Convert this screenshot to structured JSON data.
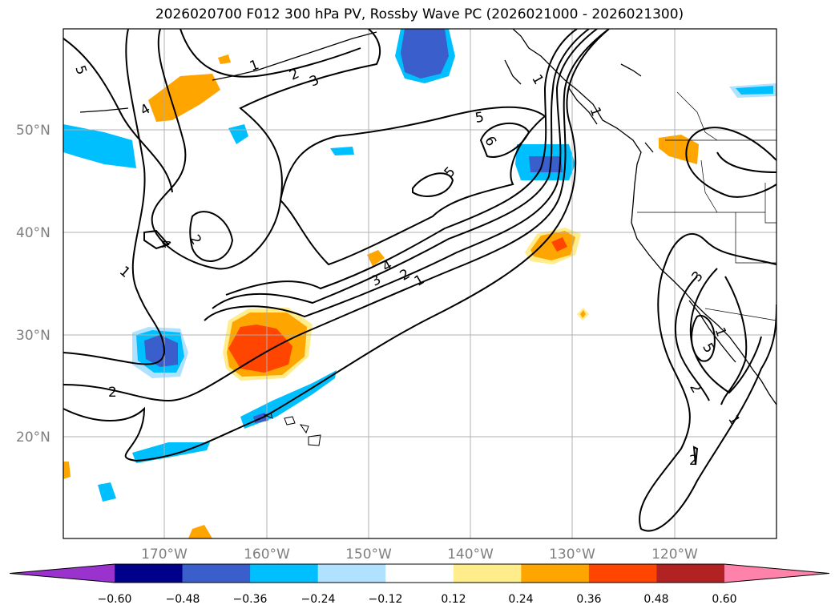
{
  "title": "2026020700 F012 300 hPa PV, Rossby Wave PC (2026021000 - 2026021300)",
  "lat_labels": [
    "50°N",
    "40°N",
    "30°N",
    "20°N"
  ],
  "lon_labels": [
    "170°W",
    "160°W",
    "150°W",
    "140°W",
    "130°W",
    "120°W"
  ],
  "colorbar": {
    "tick_labels": [
      "−0.60",
      "−0.48",
      "−0.36",
      "−0.24",
      "−0.12",
      "0.12",
      "0.24",
      "0.36",
      "0.48",
      "0.60"
    ],
    "colors": [
      "#9a32cd",
      "#00008b",
      "#3a5fcd",
      "#00bfff",
      "#b0e2ff",
      "#ffffff",
      "#ffec8b",
      "#ffa500",
      "#ff4500",
      "#b22222",
      "#ff82ab"
    ]
  },
  "contour_labels": [
    "5",
    "1",
    "2",
    "3",
    "4",
    "1",
    "2",
    "4",
    "2",
    "1",
    "5",
    "6",
    "5",
    "3",
    "4",
    "2",
    "1",
    "1",
    "3",
    "5",
    "2",
    "1",
    "2",
    "1"
  ]
}
